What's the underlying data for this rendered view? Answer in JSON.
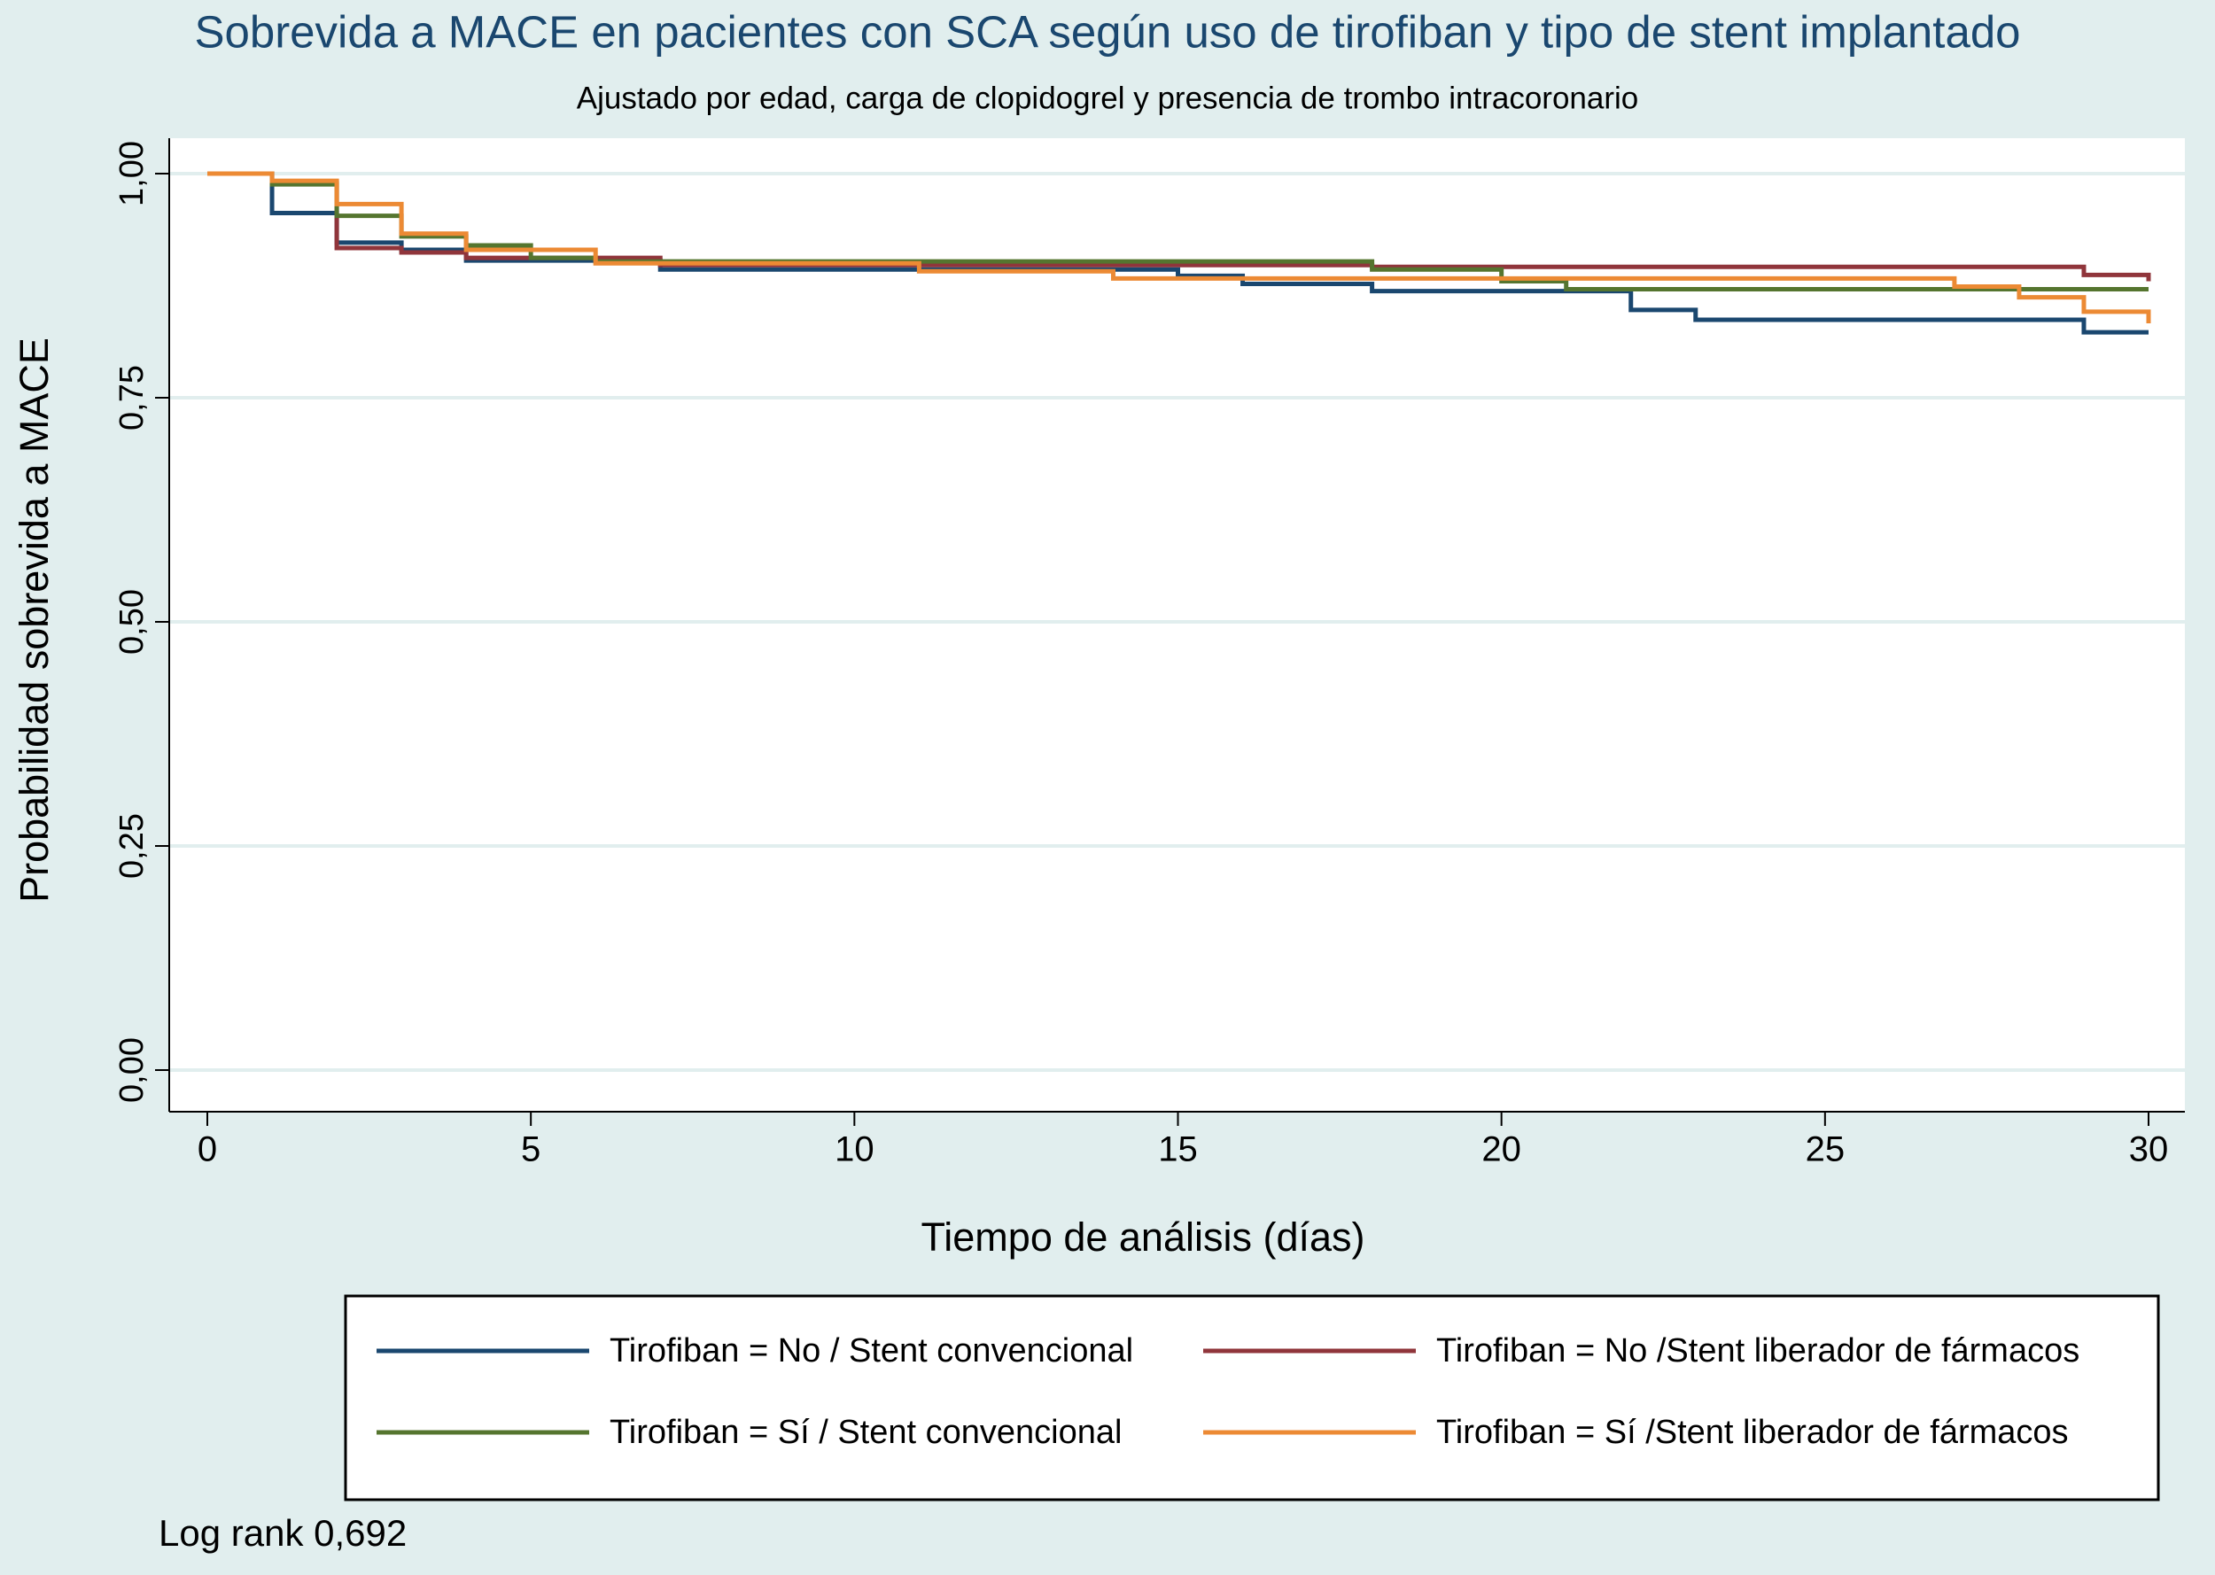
{
  "chart_data": {
    "type": "step",
    "title": "Sobrevida a MACE en pacientes con SCA según uso de tirofiban y tipo de stent implantado",
    "subtitle": "Ajustado por edad, carga de clopidogrel y presencia de trombo intracoronario",
    "x_label": "Tiempo de análisis (días)",
    "y_label": "Probabilidad sobrevida a MACE",
    "annotation": "Log rank 0,692",
    "xlim": [
      0,
      30
    ],
    "xticks": [
      0,
      5,
      10,
      15,
      20,
      25,
      30
    ],
    "ylim": [
      0,
      1
    ],
    "yticks": [
      {
        "value": 0,
        "label": "0,00"
      },
      {
        "value": 0.25,
        "label": "0,25"
      },
      {
        "value": 0.5,
        "label": "0,50"
      },
      {
        "value": 0.75,
        "label": "0,75"
      },
      {
        "value": 1,
        "label": "1,00"
      }
    ],
    "grid": true,
    "legend": "bottom",
    "series": [
      {
        "name": "Tirofiban = No / Stent convencional",
        "color": "#1a476f",
        "x": [
          0,
          1,
          2,
          3,
          4,
          7,
          15,
          16,
          18,
          22,
          23,
          29,
          30
        ],
        "values": [
          1,
          0.956,
          0.923,
          0.915,
          0.903,
          0.893,
          0.886,
          0.877,
          0.869,
          0.848,
          0.837,
          0.823,
          0.823
        ]
      },
      {
        "name": "Tirofiban = No /Stent liberador de fármacos",
        "color": "#90353b",
        "x": [
          0,
          1,
          2,
          3,
          4,
          7,
          18,
          29,
          30
        ],
        "values": [
          1,
          0.99,
          0.917,
          0.912,
          0.906,
          0.898,
          0.896,
          0.887,
          0.88
        ]
      },
      {
        "name": "Tirofiban = Sí / Stent convencional",
        "color": "#55752f",
        "x": [
          0,
          1,
          2,
          3,
          4,
          5,
          6,
          18,
          20,
          21,
          30
        ],
        "values": [
          1,
          0.988,
          0.953,
          0.93,
          0.92,
          0.906,
          0.902,
          0.893,
          0.88,
          0.871,
          0.871
        ]
      },
      {
        "name": "Tirofiban = Sí /Stent liberador de fármacos",
        "color": "#ec8a34",
        "x": [
          0,
          1,
          2,
          3,
          4,
          6,
          11,
          14,
          27,
          28,
          29,
          30
        ],
        "values": [
          1,
          0.992,
          0.966,
          0.933,
          0.915,
          0.9,
          0.891,
          0.883,
          0.874,
          0.862,
          0.846,
          0.833
        ]
      }
    ]
  }
}
